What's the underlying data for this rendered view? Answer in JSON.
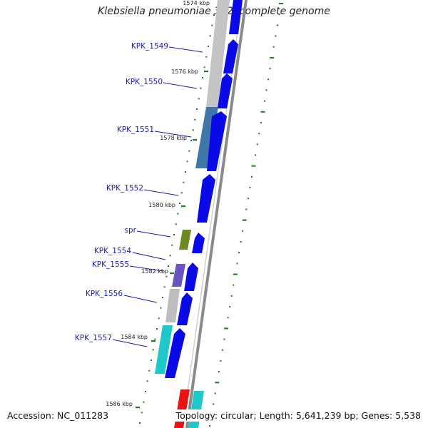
{
  "title": "Klebsiella pneumoniae 342, complete genome",
  "footer": {
    "accession": "Accession: NC_011283",
    "summary": "Topology: circular; Length: 5,641,239 bp; Genes: 5,538"
  },
  "colors": {
    "cds_forward": "#0a0ae8",
    "backbone": "#808080",
    "tick": "#1e7a1e",
    "label": "#1a1aa8"
  },
  "kbp_marks": [
    "1574 kbp",
    "1576 kbp",
    "1578 kbp",
    "1580 kbp",
    "1582 kbp",
    "1584 kbp",
    "1586 kbp"
  ],
  "gene_labels": [
    "KPK_1549",
    "KPK_1550",
    "KPK_1551",
    "KPK_1552",
    "spr",
    "KPK_1554",
    "KPK_1555",
    "KPK_1556",
    "KPK_1557"
  ]
}
